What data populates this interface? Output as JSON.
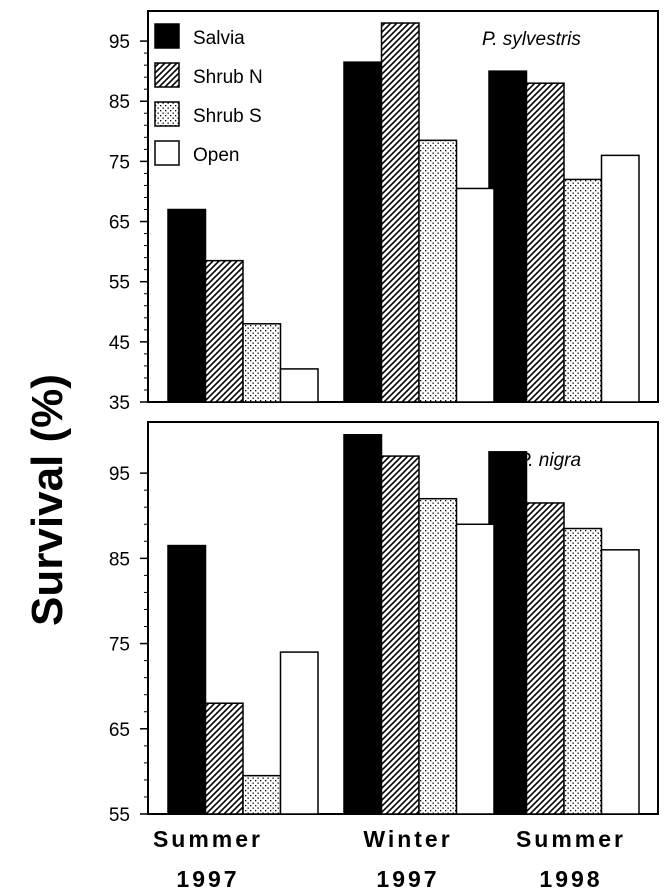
{
  "chart_data": {
    "type": "bar",
    "ylabel": "Survival (%)",
    "categories": [
      "Summer 1997",
      "Winter 1997",
      "Summer 1998"
    ],
    "category_lines": [
      [
        "Summer",
        "1997"
      ],
      [
        "Winter",
        "1997"
      ],
      [
        "Summer",
        "1998"
      ]
    ],
    "legend": [
      "Salvia",
      "Shrub N",
      "Shrub S",
      "Open"
    ],
    "legend_placement": "top-left",
    "series_styles": {
      "Salvia": "solid-black",
      "Shrub N": "diagonal-hatch",
      "Shrub S": "dotted",
      "Open": "white"
    },
    "panels": [
      {
        "species": "P.   sylvestris",
        "ylim": [
          35,
          100
        ],
        "yticks": [
          35,
          45,
          55,
          65,
          75,
          85,
          95
        ],
        "series": [
          {
            "name": "Salvia",
            "values": [
              67,
              91.5,
              90
            ]
          },
          {
            "name": "Shrub N",
            "values": [
              58.5,
              98,
              88
            ]
          },
          {
            "name": "Shrub S",
            "values": [
              48,
              78.5,
              72
            ]
          },
          {
            "name": "Open",
            "values": [
              40.5,
              70.5,
              76
            ]
          }
        ]
      },
      {
        "species": "P.  nigra",
        "ylim": [
          55,
          101
        ],
        "yticks": [
          55,
          65,
          75,
          85,
          95
        ],
        "series": [
          {
            "name": "Salvia",
            "values": [
              86.5,
              99.5,
              97.5
            ]
          },
          {
            "name": "Shrub N",
            "values": [
              68,
              97,
              91.5
            ]
          },
          {
            "name": "Shrub S",
            "values": [
              59.5,
              92,
              88.5
            ]
          },
          {
            "name": "Open",
            "values": [
              74,
              89,
              86
            ]
          }
        ]
      }
    ]
  }
}
